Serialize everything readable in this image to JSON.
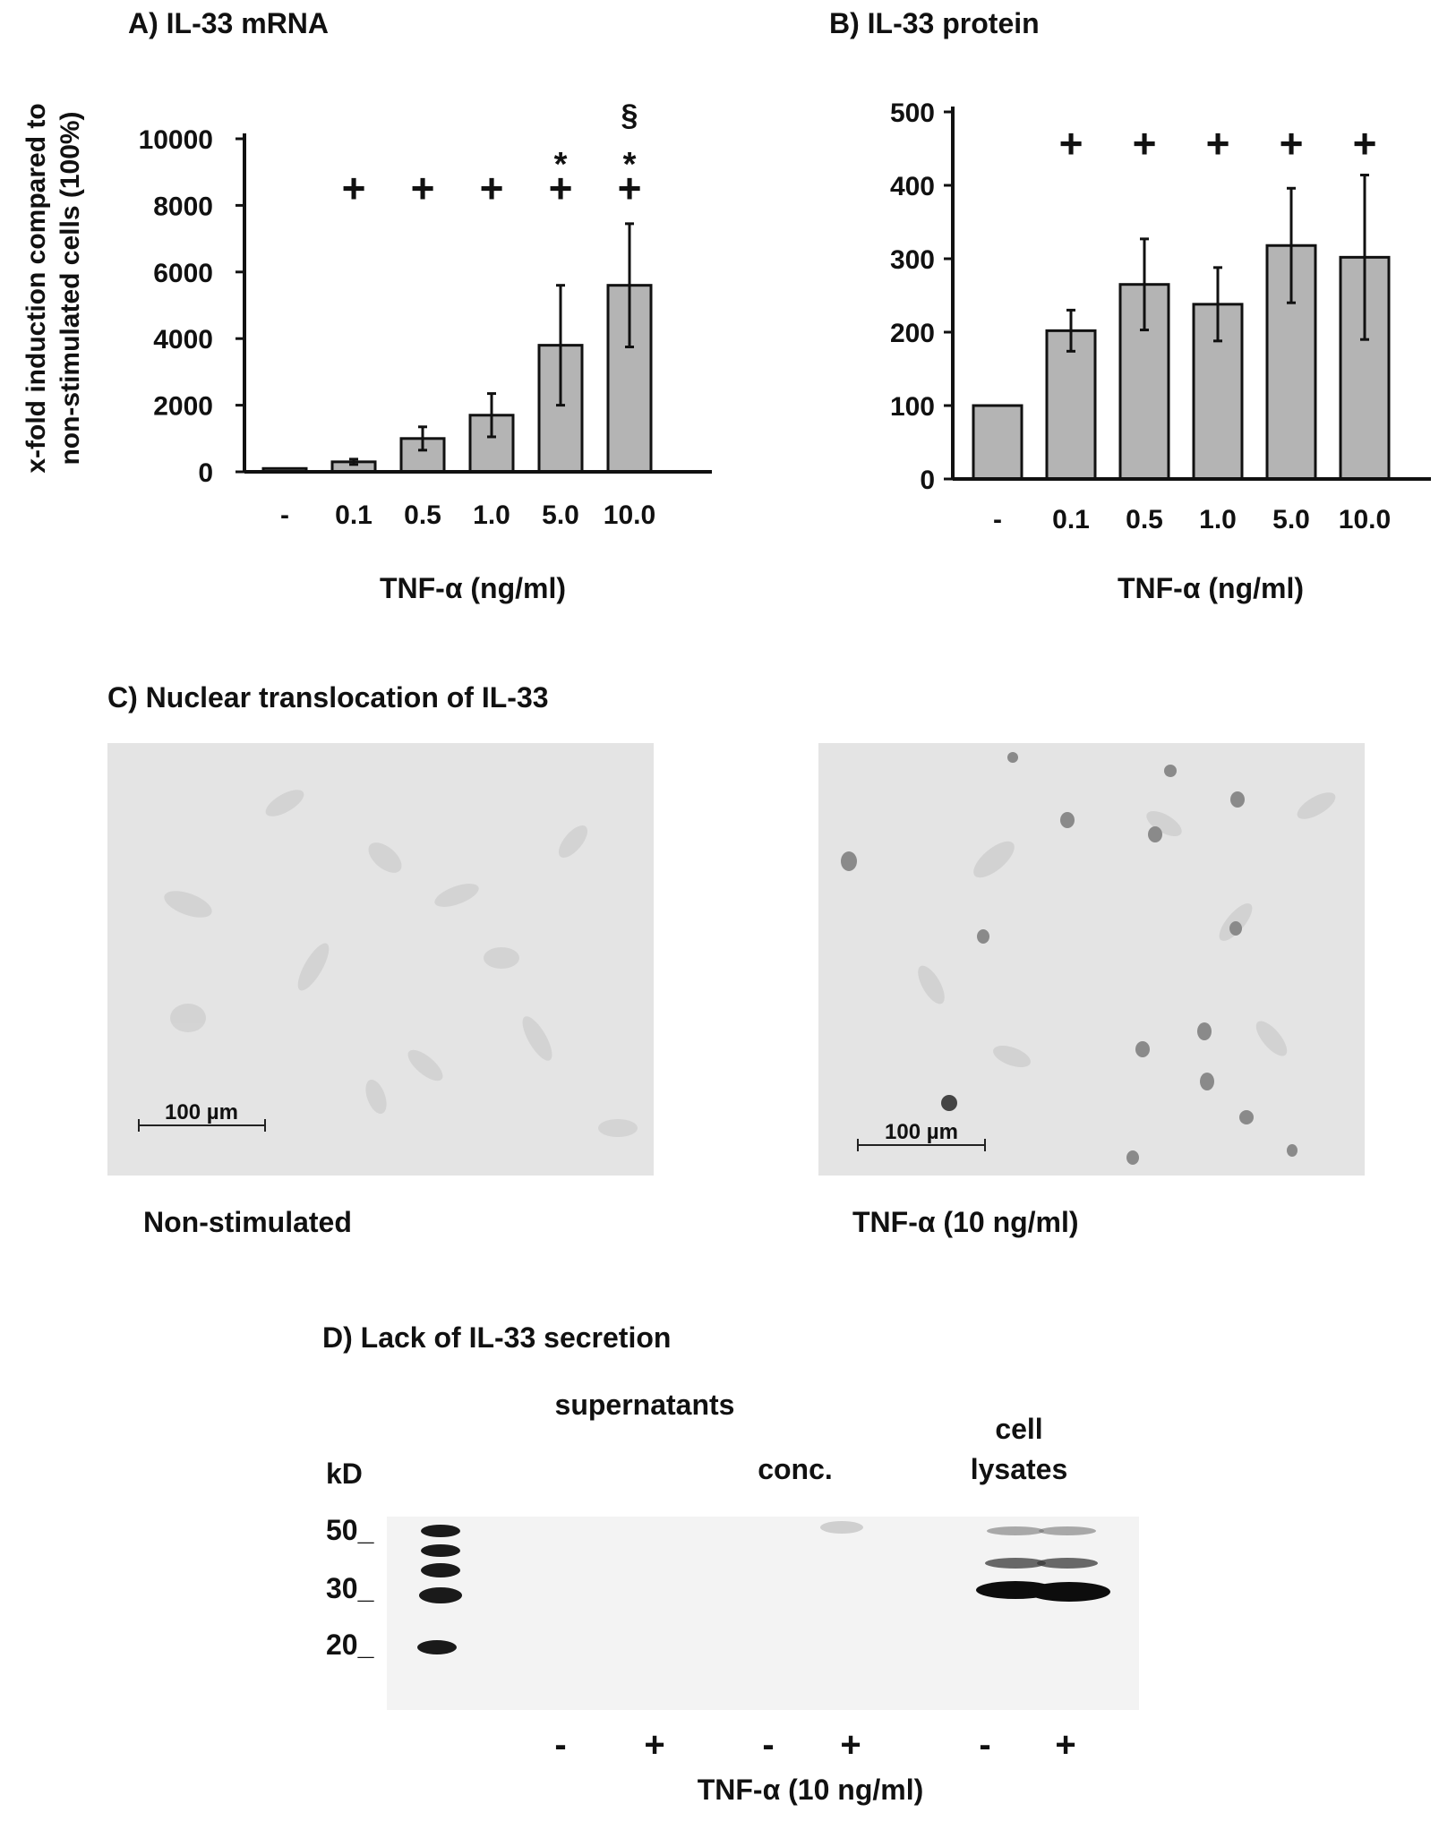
{
  "chart_data": [
    {
      "panel": "A",
      "type": "bar",
      "title": "A) IL-33  mRNA",
      "ylabel": "x-fold induction compared to non-stimulated cells (100%)",
      "ylabel_lines": [
        "x-fold induction compared to",
        "non-stimulated cells (100%)"
      ],
      "xlabel": "TNF-α (ng/ml)",
      "categories": [
        "-",
        "0.1",
        "0.5",
        "1.0",
        "5.0",
        "10.0"
      ],
      "values": [
        100,
        300,
        1000,
        1700,
        3800,
        5600
      ],
      "error": [
        0,
        80,
        350,
        650,
        1800,
        1850
      ],
      "ylim": [
        0,
        10000
      ],
      "yticks": [
        0,
        2000,
        4000,
        6000,
        8000,
        10000
      ],
      "ytick_labels": [
        "0",
        "2000",
        "4000",
        "6000",
        "8000",
        "10000"
      ],
      "annotations": {
        "plus": [
          "",
          "+",
          "+",
          "+",
          "+",
          "+"
        ],
        "star": [
          "",
          "",
          "",
          "",
          "*",
          "*"
        ],
        "section": [
          "",
          "",
          "",
          "",
          "",
          "§"
        ]
      },
      "bar_color": "#b4b4b4"
    },
    {
      "panel": "B",
      "type": "bar",
      "title": "B) IL-33 protein",
      "xlabel": "TNF-α (ng/ml)",
      "categories": [
        "-",
        "0.1",
        "0.5",
        "1.0",
        "5.0",
        "10.0"
      ],
      "values": [
        100,
        202,
        265,
        238,
        318,
        302
      ],
      "error": [
        0,
        28,
        62,
        50,
        78,
        112
      ],
      "ylim": [
        0,
        500
      ],
      "yticks": [
        0,
        100,
        200,
        300,
        400,
        500
      ],
      "ytick_labels": [
        "0",
        "100",
        "200",
        "300",
        "400",
        "500"
      ],
      "annotations": {
        "plus": [
          "",
          "+",
          "+",
          "+",
          "+",
          "+"
        ]
      },
      "bar_color": "#b4b4b4"
    }
  ],
  "panel_c": {
    "title": "C) Nuclear translocation of IL-33",
    "left_caption": "Non-stimulated",
    "right_caption": "TNF-α (10 ng/ml)",
    "scale_label": "100 µm",
    "image_bg": "#e4e4e4"
  },
  "panel_d": {
    "title": "D) Lack of IL-33 secretion",
    "label_supernatants": "supernatants",
    "label_conc": "conc.",
    "label_cell": "cell",
    "label_lysates": "lysates",
    "label_kd": "kD",
    "markers": [
      "50_",
      "30_",
      "20_"
    ],
    "lanes": [
      "-",
      "+",
      "-",
      "+",
      "-",
      "+"
    ],
    "xlabel": "TNF-α (10 ng/ml)",
    "blot_bg": "#f3f3f3"
  }
}
